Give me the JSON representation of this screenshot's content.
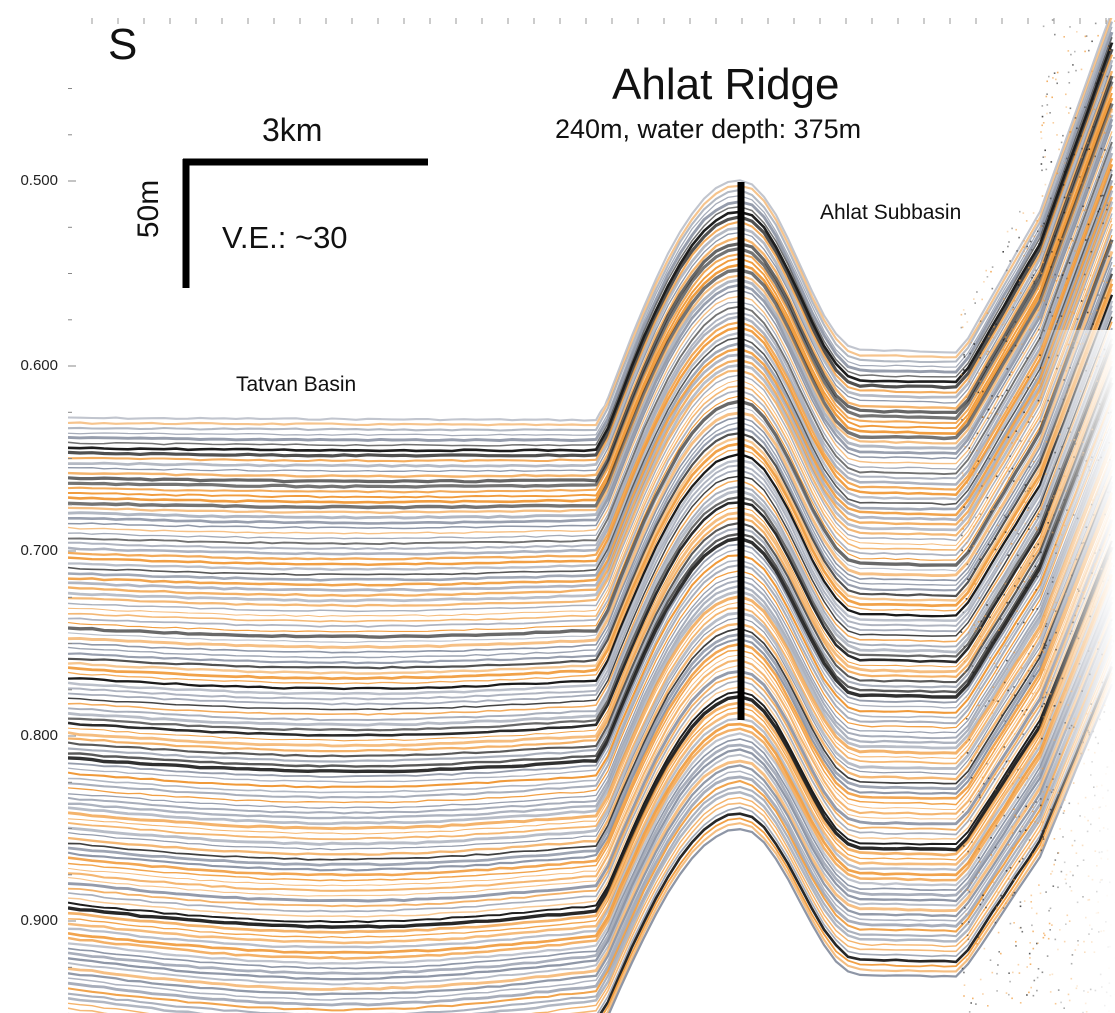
{
  "section_label": "S",
  "title": "Ahlat Ridge",
  "subtitle": "240m, water depth: 375m",
  "scale": {
    "horizontal": "3km",
    "vertical": "50m",
    "vertical_exaggeration": "V.E.: ~30"
  },
  "annotations": {
    "tatvan": "Tatvan Basin",
    "ahlat_subbasin": "Ahlat Subbasin"
  },
  "y_axis": {
    "ticks": [
      "0.500",
      "0.600",
      "0.700",
      "0.800",
      "0.900"
    ],
    "tick_values": [
      0.5,
      0.6,
      0.7,
      0.8,
      0.9
    ]
  },
  "colors": {
    "reflector_dark": "#1b1b1b",
    "reflector_orange": "#f09a3a",
    "reflector_gray": "#8e96a6",
    "background": "#ffffff"
  }
}
